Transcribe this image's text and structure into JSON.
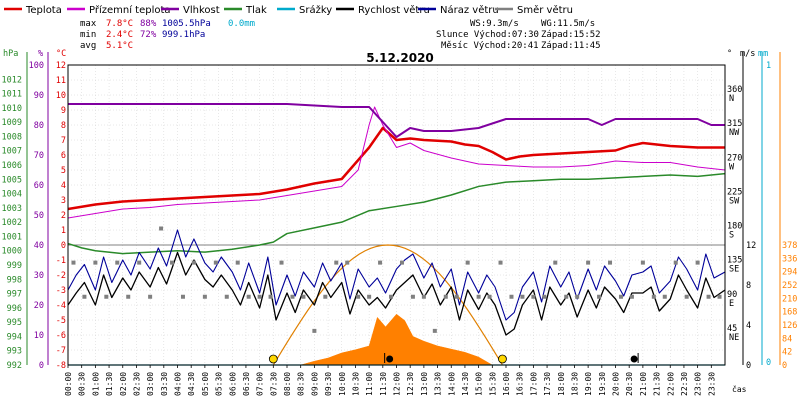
{
  "chart_data": {
    "type": "line",
    "title": "5.12.2020",
    "xlabel": "čas",
    "x_ticks": [
      "00:00",
      "00:30",
      "01:00",
      "01:30",
      "02:00",
      "02:30",
      "03:00",
      "03:30",
      "04:00",
      "04:30",
      "05:00",
      "05:30",
      "06:00",
      "06:30",
      "07:00",
      "07:30",
      "08:00",
      "08:30",
      "09:00",
      "09:30",
      "10:00",
      "10:30",
      "11:00",
      "11:30",
      "12:00",
      "12:30",
      "13:00",
      "13:30",
      "14:00",
      "14:30",
      "15:00",
      "15:30",
      "16:00",
      "16:30",
      "17:00",
      "17:30",
      "18:00",
      "18:30",
      "19:00",
      "19:30",
      "20:00",
      "20:30",
      "21:00",
      "21:30",
      "22:00",
      "22:30",
      "23:00",
      "23:30"
    ],
    "x_range_hours": [
      0,
      24
    ],
    "legend": [
      {
        "name": "Teplota",
        "color": "#e00000"
      },
      {
        "name": "Přízemní teplota",
        "color": "#cc00cc"
      },
      {
        "name": "Vlhkost",
        "color": "#8000a0"
      },
      {
        "name": "Tlak",
        "color": "#2a8a2a"
      },
      {
        "name": "Srážky",
        "color": "#00aacc"
      },
      {
        "name": "Rychlost větru",
        "color": "#000000"
      },
      {
        "name": "Náraz větru",
        "color": "#000099"
      },
      {
        "name": "Směr větru",
        "color": "#808080"
      }
    ],
    "stats": {
      "max": {
        "label": "max",
        "temp": "7.8°C",
        "hum": "88%",
        "press": "1005.5hPa",
        "rain": "0.0mm"
      },
      "min": {
        "label": "min",
        "temp": "2.4°C",
        "hum": "72%",
        "press": "999.1hPa"
      },
      "avg": {
        "label": "avg",
        "temp": "5.1°C"
      }
    },
    "info": {
      "ws": "WS:9.3m/s",
      "wg": "WG:11.5m/s",
      "sun_rise": "Slunce Východ:07:30",
      "sun_set": "Západ:15:52",
      "moon_rise": "Měsíc Východ:20:41",
      "moon_set": "Západ:11:45"
    },
    "axes": {
      "hpa": {
        "label": "hPa",
        "range": [
          992,
          1013
        ],
        "ticks": [
          992,
          993,
          994,
          995,
          996,
          997,
          998,
          999,
          1000,
          1001,
          1002,
          1003,
          1004,
          1005,
          1006,
          1007,
          1008,
          1009,
          1010,
          1011,
          1012
        ]
      },
      "pct": {
        "label": "%",
        "range": [
          0,
          100
        ],
        "ticks": [
          0,
          10,
          20,
          30,
          40,
          50,
          60,
          70,
          80,
          90,
          100
        ]
      },
      "temp": {
        "label": "°C",
        "range": [
          -8,
          12
        ],
        "ticks": [
          -8,
          -7,
          -6,
          -5,
          -4,
          -3,
          -2,
          -1,
          0,
          1,
          2,
          3,
          4,
          5,
          6,
          7,
          8,
          9,
          10,
          11,
          12
        ]
      },
      "dir": {
        "label": "°",
        "ticks": [
          {
            "v": 45,
            "t": "45",
            "d": "NE"
          },
          {
            "v": 90,
            "t": "90",
            "d": "E"
          },
          {
            "v": 135,
            "t": "135",
            "d": "SE"
          },
          {
            "v": 180,
            "t": "180",
            "d": "S"
          },
          {
            "v": 225,
            "t": "225",
            "d": "SW"
          },
          {
            "v": 270,
            "t": "270",
            "d": "W"
          },
          {
            "v": 315,
            "t": "315",
            "d": "NW"
          },
          {
            "v": 360,
            "t": "360",
            "d": "N"
          }
        ]
      },
      "wind": {
        "label": "m/s",
        "ticks": [
          0,
          4,
          8,
          12
        ]
      },
      "rain": {
        "label": "mm",
        "ticks": [
          0,
          1
        ]
      },
      "sol": {
        "ticks": [
          0,
          42,
          84,
          126,
          168,
          210,
          252,
          294,
          336,
          378
        ]
      }
    },
    "series": [
      {
        "name": "Teplota",
        "axis": "temp",
        "color": "#e00000",
        "x": [
          0,
          1,
          2,
          3,
          4,
          5,
          6,
          7,
          8,
          9,
          10,
          11,
          11.5,
          12,
          12.5,
          13,
          14,
          14.5,
          15,
          15.5,
          16,
          16.5,
          17,
          18,
          19,
          20,
          20.5,
          21,
          22,
          23,
          24
        ],
        "y": [
          2.4,
          2.7,
          2.9,
          3.0,
          3.1,
          3.2,
          3.3,
          3.4,
          3.7,
          4.1,
          4.4,
          6.5,
          7.8,
          7.0,
          7.1,
          7.0,
          6.9,
          6.7,
          6.6,
          6.2,
          5.7,
          5.9,
          6.0,
          6.1,
          6.2,
          6.3,
          6.6,
          6.8,
          6.6,
          6.5,
          6.5
        ]
      },
      {
        "name": "Přízemní teplota",
        "axis": "temp",
        "color": "#cc00cc",
        "x": [
          0,
          1,
          2,
          3,
          4,
          5,
          6,
          7,
          8,
          9,
          10,
          10.6,
          11.0,
          11.2,
          11.5,
          12,
          12.5,
          13,
          14,
          15,
          16,
          17,
          18,
          19,
          20,
          21,
          22,
          23,
          24
        ],
        "y": [
          1.8,
          2.1,
          2.4,
          2.5,
          2.7,
          2.8,
          2.9,
          3.0,
          3.3,
          3.6,
          3.9,
          5.0,
          8.0,
          9.2,
          8.0,
          6.5,
          6.8,
          6.3,
          5.8,
          5.4,
          5.3,
          5.2,
          5.2,
          5.3,
          5.6,
          5.5,
          5.5,
          5.2,
          5.0
        ]
      },
      {
        "name": "Vlhkost",
        "axis": "pct",
        "color": "#8000a0",
        "x": [
          0,
          6,
          8,
          10,
          10.5,
          11,
          11.5,
          12,
          12.5,
          13,
          14,
          15,
          16,
          17,
          18,
          19,
          19.5,
          20,
          21,
          22,
          23,
          23.5,
          24
        ],
        "y": [
          87,
          87,
          87,
          86,
          86,
          86,
          81,
          76,
          79,
          78,
          78,
          79,
          82,
          82,
          82,
          82,
          80,
          82,
          82,
          82,
          82,
          80,
          80
        ]
      },
      {
        "name": "Tlak",
        "axis": "hpa",
        "color": "#2a8a2a",
        "x": [
          0,
          0.5,
          1,
          2,
          3,
          4,
          5,
          6,
          7,
          7.5,
          8,
          9,
          10,
          11,
          12,
          13,
          14,
          15,
          16,
          17,
          18,
          19,
          20,
          21,
          22,
          23,
          24
        ],
        "y": [
          1000.5,
          1000.2,
          1000.0,
          999.8,
          999.9,
          1000.0,
          999.9,
          1000.1,
          1000.4,
          1000.6,
          1001.2,
          1001.6,
          1002.0,
          1002.8,
          1003.1,
          1003.4,
          1003.9,
          1004.5,
          1004.8,
          1004.9,
          1005.0,
          1005.0,
          1005.1,
          1005.2,
          1005.3,
          1005.2,
          1005.4
        ]
      },
      {
        "name": "Srážky",
        "axis": "rain",
        "color": "#00aacc",
        "x": [
          0,
          24
        ],
        "y": [
          0,
          0
        ]
      },
      {
        "name": "Rychlost větru",
        "axis": "temp",
        "color": "#000000",
        "x": [
          0,
          0.3,
          0.6,
          1,
          1.3,
          1.6,
          2,
          2.3,
          2.6,
          3,
          3.3,
          3.6,
          4,
          4.3,
          4.6,
          5,
          5.3,
          5.6,
          6,
          6.3,
          6.6,
          7,
          7.3,
          7.6,
          8,
          8.3,
          8.6,
          9,
          9.3,
          9.6,
          10,
          10.3,
          10.6,
          11,
          11.3,
          11.6,
          12,
          12.3,
          12.6,
          13,
          13.3,
          13.6,
          14,
          14.3,
          14.6,
          15,
          15.3,
          15.6,
          16,
          16.3,
          16.6,
          17,
          17.3,
          17.6,
          18,
          18.3,
          18.6,
          19,
          19.3,
          19.6,
          20,
          20.3,
          20.6,
          21,
          21.3,
          21.6,
          22,
          22.3,
          22.6,
          23,
          23.3,
          23.6,
          24
        ],
        "y": [
          -4.0,
          -3.2,
          -2.5,
          -4.0,
          -2.0,
          -3.5,
          -2.2,
          -3.0,
          -1.8,
          -2.8,
          -1.5,
          -2.6,
          -0.5,
          -2.0,
          -1.0,
          -2.3,
          -2.8,
          -2.0,
          -3.0,
          -4.0,
          -2.5,
          -4.2,
          -2.0,
          -5.0,
          -3.2,
          -4.5,
          -3.0,
          -4.0,
          -2.5,
          -3.5,
          -2.5,
          -4.6,
          -3.0,
          -4.0,
          -3.5,
          -4.2,
          -3.0,
          -2.5,
          -2.0,
          -3.5,
          -2.6,
          -4.0,
          -2.8,
          -5.0,
          -3.0,
          -4.3,
          -3.2,
          -4.0,
          -6.0,
          -5.6,
          -4.0,
          -3.0,
          -5.0,
          -2.8,
          -4.0,
          -3.2,
          -4.8,
          -3.0,
          -4.2,
          -2.8,
          -3.6,
          -4.5,
          -3.2,
          -3.2,
          -2.8,
          -4.4,
          -3.6,
          -2.0,
          -3.0,
          -4.2,
          -2.2,
          -3.5,
          -3.0
        ]
      },
      {
        "name": "Náraz větru",
        "axis": "temp",
        "color": "#000099",
        "x": [
          0,
          0.3,
          0.6,
          1,
          1.3,
          1.6,
          2,
          2.3,
          2.6,
          3,
          3.3,
          3.6,
          4,
          4.3,
          4.6,
          5,
          5.3,
          5.6,
          6,
          6.3,
          6.6,
          7,
          7.3,
          7.6,
          8,
          8.3,
          8.6,
          9,
          9.3,
          9.6,
          10,
          10.3,
          10.6,
          11,
          11.3,
          11.6,
          12,
          12.3,
          12.6,
          13,
          13.3,
          13.6,
          14,
          14.3,
          14.6,
          15,
          15.3,
          15.6,
          16,
          16.3,
          16.6,
          17,
          17.3,
          17.6,
          18,
          18.3,
          18.6,
          19,
          19.3,
          19.6,
          20,
          20.3,
          20.6,
          21,
          21.3,
          21.6,
          22,
          22.3,
          22.6,
          23,
          23.3,
          23.6,
          24
        ],
        "y": [
          -3.0,
          -2.0,
          -1.3,
          -3.0,
          -0.8,
          -2.5,
          -1.0,
          -2.0,
          -0.5,
          -1.6,
          -0.2,
          -1.4,
          1.0,
          -0.8,
          0.4,
          -1.2,
          -1.8,
          -0.8,
          -1.8,
          -3.0,
          -1.2,
          -3.2,
          -0.8,
          -4.0,
          -2.0,
          -3.4,
          -1.8,
          -2.8,
          -1.2,
          -2.4,
          -1.2,
          -3.6,
          -1.6,
          -2.8,
          -2.2,
          -3.2,
          -1.6,
          -1.0,
          -0.6,
          -2.2,
          -1.2,
          -2.8,
          -1.6,
          -4.0,
          -1.8,
          -3.2,
          -2.0,
          -2.8,
          -5.0,
          -4.5,
          -2.8,
          -1.8,
          -3.8,
          -1.4,
          -2.8,
          -1.8,
          -3.6,
          -1.6,
          -3.0,
          -1.4,
          -2.4,
          -3.4,
          -2.0,
          -1.8,
          -1.4,
          -3.2,
          -2.4,
          -0.8,
          -1.6,
          -3.0,
          -0.6,
          -2.2,
          -1.8
        ]
      },
      {
        "name": "Směr větru",
        "axis": "dir",
        "color": "#808080",
        "x": [
          0.2,
          0.6,
          1.0,
          1.4,
          1.8,
          2.2,
          2.6,
          3.0,
          3.4,
          3.8,
          4.2,
          4.6,
          5.0,
          5.4,
          5.8,
          6.2,
          6.6,
          7.0,
          7.4,
          7.8,
          8.2,
          8.6,
          9.0,
          9.4,
          9.8,
          10.2,
          10.6,
          11.0,
          11.4,
          11.8,
          12.2,
          12.6,
          13.0,
          13.4,
          13.8,
          14.2,
          14.6,
          15.0,
          15.4,
          15.8,
          16.2,
          16.6,
          17.0,
          17.4,
          17.8,
          18.2,
          18.6,
          19.0,
          19.4,
          19.8,
          20.2,
          20.6,
          21.0,
          21.4,
          21.8,
          22.2,
          22.6,
          23.0,
          23.4,
          23.8
        ],
        "y": [
          135,
          90,
          135,
          90,
          135,
          90,
          135,
          90,
          180,
          135,
          90,
          135,
          90,
          135,
          90,
          135,
          90,
          90,
          90,
          135,
          90,
          90,
          45,
          90,
          135,
          135,
          90,
          90,
          135,
          90,
          135,
          90,
          90,
          45,
          90,
          90,
          135,
          90,
          90,
          135,
          90,
          90,
          90,
          90,
          135,
          90,
          90,
          135,
          90,
          135,
          90,
          90,
          135,
          90,
          90,
          135,
          90,
          135,
          90,
          90
        ]
      }
    ],
    "solar": {
      "axis": "sol",
      "x": [
        8.5,
        9,
        9.5,
        10,
        10.5,
        11,
        11.3,
        11.6,
        12,
        12.3,
        12.6,
        13,
        13.5,
        14,
        14.5,
        15,
        15.5
      ],
      "y": [
        0,
        12,
        22,
        38,
        48,
        60,
        150,
        120,
        160,
        140,
        90,
        75,
        60,
        50,
        40,
        25,
        0
      ]
    },
    "sun_curve": {
      "rise_hour": 7.5,
      "set_hour": 15.87,
      "peak_axis_value": 0
    }
  }
}
